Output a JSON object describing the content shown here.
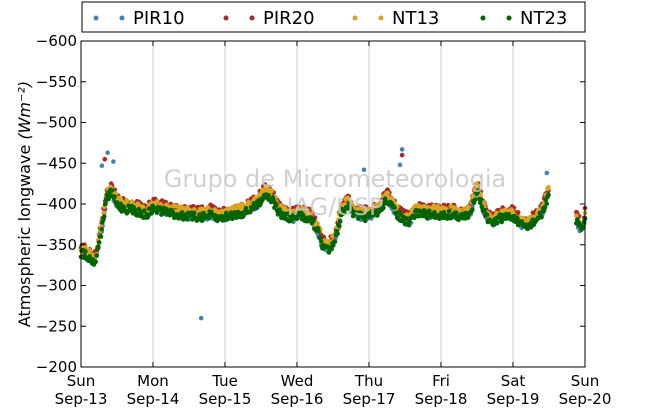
{
  "chart_data": {
    "type": "scatter",
    "ylabel": "Atmospheric longwave ",
    "ylabel_unit": "(Wm⁻²)",
    "watermark": [
      "Grupo de Micrometeorologia",
      "IAG/USP"
    ],
    "ylim": [
      -600,
      -200
    ],
    "yticks": [
      -200,
      -250,
      -300,
      -350,
      -400,
      -450,
      -500,
      -550,
      -600
    ],
    "ytick_labels": [
      "−200",
      "−250",
      "−300",
      "−350",
      "−400",
      "−450",
      "−500",
      "−550",
      "−600"
    ],
    "xlim": [
      "2015-09-13",
      "2015-09-20"
    ],
    "xticks": [
      {
        "day": "Sun",
        "date": "Sep-13"
      },
      {
        "day": "Mon",
        "date": "Sep-14"
      },
      {
        "day": "Tue",
        "date": "Sep-15"
      },
      {
        "day": "Wed",
        "date": "Sep-16"
      },
      {
        "day": "Thu",
        "date": "Sep-17"
      },
      {
        "day": "Fri",
        "date": "Sep-18"
      },
      {
        "day": "Sat",
        "date": "Sep-19"
      },
      {
        "day": "Sun",
        "date": "Sep-20"
      }
    ],
    "grid": "vertical",
    "legend_position": "top",
    "series": [
      {
        "name": "PIR10",
        "color": "#4682b4"
      },
      {
        "name": "PIR20",
        "color": "#a52a2a"
      },
      {
        "name": "NT13",
        "color": "#daa520"
      },
      {
        "name": "NT23",
        "color": "#006400"
      }
    ],
    "curve_x_days": [
      0,
      0.06,
      0.12,
      0.2,
      0.25,
      0.3,
      0.35,
      0.42,
      0.5,
      0.6,
      0.75,
      0.9,
      1.0,
      1.15,
      1.3,
      1.45,
      1.6,
      1.7,
      1.8,
      1.9,
      2.0,
      2.15,
      2.3,
      2.45,
      2.55,
      2.65,
      2.75,
      2.85,
      2.95,
      3.05,
      3.2,
      3.3,
      3.35,
      3.45,
      3.55,
      3.62,
      3.7,
      3.8,
      3.9,
      4.0,
      4.15,
      4.25,
      4.35,
      4.45,
      4.55,
      4.65,
      4.8,
      5.0,
      5.15,
      5.3,
      5.4,
      5.5,
      5.6,
      5.7,
      5.8,
      5.9,
      6.0,
      6.1,
      6.2,
      6.3,
      6.4,
      6.5
    ],
    "curve_y": [
      -345,
      -345,
      -338,
      -335,
      -360,
      -380,
      -412,
      -420,
      -405,
      -400,
      -398,
      -392,
      -400,
      -397,
      -393,
      -391,
      -390,
      -390,
      -392,
      -388,
      -390,
      -393,
      -396,
      -405,
      -418,
      -412,
      -395,
      -390,
      -388,
      -392,
      -386,
      -370,
      -355,
      -350,
      -368,
      -395,
      -405,
      -392,
      -390,
      -390,
      -398,
      -412,
      -398,
      -388,
      -382,
      -395,
      -393,
      -392,
      -393,
      -390,
      -392,
      -425,
      -395,
      -380,
      -388,
      -390,
      -390,
      -380,
      -378,
      -385,
      -392,
      -420
    ],
    "curve_x_days_tail": [
      6.88,
      6.92,
      6.96,
      7.0
    ],
    "curve_y_tail": [
      -385,
      -378,
      -372,
      -390
    ],
    "offsets": {
      "PIR10": 5,
      "PIR20": -2,
      "NT13": 0,
      "NT23": 6
    },
    "outliers": [
      {
        "series": "PIR10",
        "x_day": 1.67,
        "y": -260
      },
      {
        "series": "PIR10",
        "x_day": 0.37,
        "y": -463
      },
      {
        "series": "PIR10",
        "x_day": 0.45,
        "y": -452
      },
      {
        "series": "PIR20",
        "x_day": 0.33,
        "y": -455
      },
      {
        "series": "PIR10",
        "x_day": 0.29,
        "y": -447
      },
      {
        "series": "PIR20",
        "x_day": 4.46,
        "y": -460
      },
      {
        "series": "PIR10",
        "x_day": 4.46,
        "y": -467
      },
      {
        "series": "PIR10",
        "x_day": 4.43,
        "y": -448
      },
      {
        "series": "PIR10",
        "x_day": 3.93,
        "y": -442
      },
      {
        "series": "PIR10",
        "x_day": 6.47,
        "y": -438
      }
    ]
  }
}
